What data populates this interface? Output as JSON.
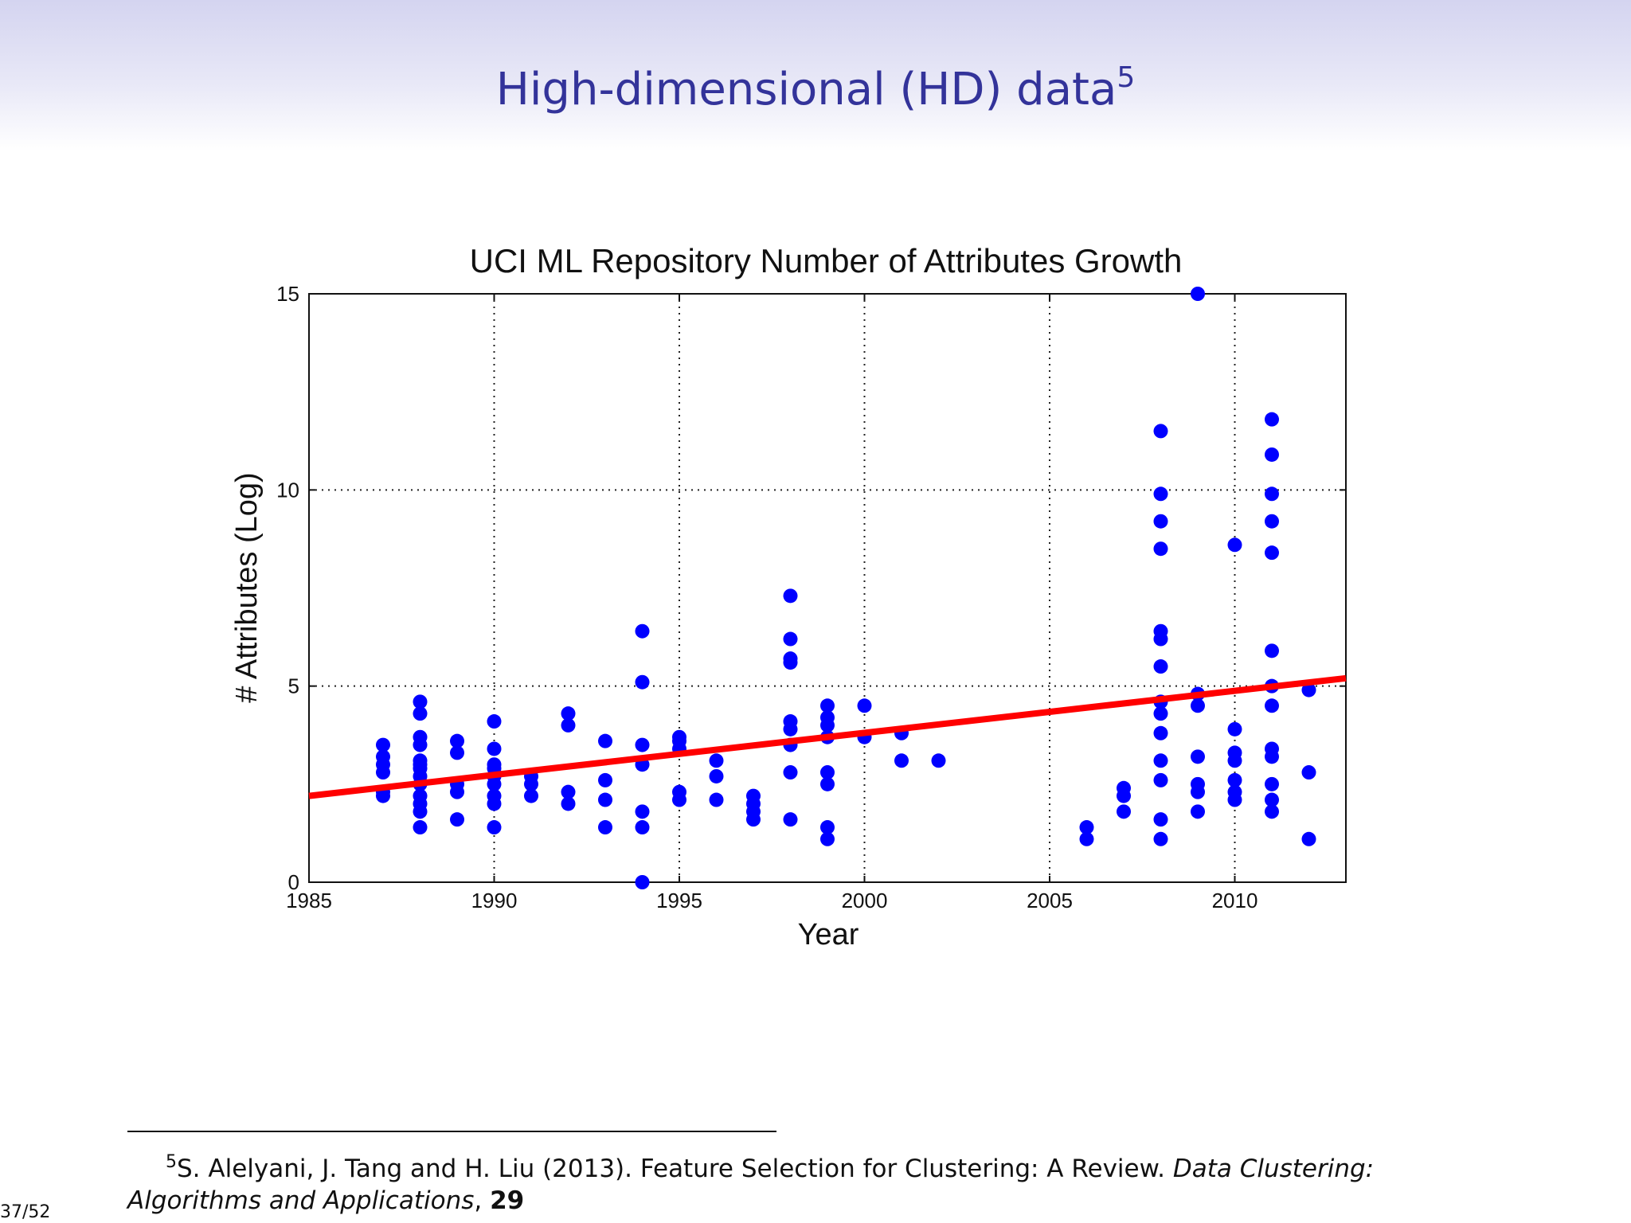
{
  "slide": {
    "title": "High-dimensional (HD) data",
    "title_footnote_mark": "5",
    "page_number": "37/52"
  },
  "footnote": {
    "mark": "5",
    "text": "S. Alelyani, J. Tang and H. Liu (2013). Feature Selection for Clustering: A Review.",
    "journal": "Data Clustering: Algorithms and Applications",
    "separator": ", ",
    "volume": "29"
  },
  "chart_data": {
    "type": "scatter",
    "title": "UCI ML Repository Number of Attributes Growth",
    "xlabel": "Year",
    "ylabel": "# Attributes (Log)",
    "xlim": [
      1985,
      2013
    ],
    "ylim": [
      0,
      15
    ],
    "xticks": [
      1985,
      1990,
      1995,
      2000,
      2005,
      2010
    ],
    "yticks": [
      0,
      5,
      10,
      15
    ],
    "grid": true,
    "colors": {
      "points": "#0000ff",
      "trend": "#ff0000",
      "grid": "#222222"
    },
    "points": [
      [
        1987,
        2.2
      ],
      [
        1987,
        2.3
      ],
      [
        1987,
        2.8
      ],
      [
        1987,
        3.0
      ],
      [
        1987,
        3.2
      ],
      [
        1987,
        3.5
      ],
      [
        1988,
        1.4
      ],
      [
        1988,
        1.8
      ],
      [
        1988,
        2.0
      ],
      [
        1988,
        2.2
      ],
      [
        1988,
        2.5
      ],
      [
        1988,
        2.7
      ],
      [
        1988,
        2.9
      ],
      [
        1988,
        3.0
      ],
      [
        1988,
        3.1
      ],
      [
        1988,
        3.5
      ],
      [
        1988,
        3.7
      ],
      [
        1988,
        4.3
      ],
      [
        1988,
        4.6
      ],
      [
        1989,
        1.6
      ],
      [
        1989,
        2.3
      ],
      [
        1989,
        2.5
      ],
      [
        1989,
        3.3
      ],
      [
        1989,
        3.6
      ],
      [
        1990,
        1.4
      ],
      [
        1990,
        2.0
      ],
      [
        1990,
        2.2
      ],
      [
        1990,
        2.5
      ],
      [
        1990,
        2.7
      ],
      [
        1990,
        2.9
      ],
      [
        1990,
        3.0
      ],
      [
        1990,
        3.4
      ],
      [
        1990,
        4.1
      ],
      [
        1991,
        2.2
      ],
      [
        1991,
        2.5
      ],
      [
        1991,
        2.7
      ],
      [
        1992,
        2.0
      ],
      [
        1992,
        2.3
      ],
      [
        1992,
        4.0
      ],
      [
        1992,
        4.3
      ],
      [
        1993,
        1.4
      ],
      [
        1993,
        2.1
      ],
      [
        1993,
        2.6
      ],
      [
        1993,
        3.6
      ],
      [
        1994,
        0.0
      ],
      [
        1994,
        1.4
      ],
      [
        1994,
        1.8
      ],
      [
        1994,
        3.0
      ],
      [
        1994,
        3.5
      ],
      [
        1994,
        5.1
      ],
      [
        1994,
        6.4
      ],
      [
        1995,
        2.1
      ],
      [
        1995,
        2.3
      ],
      [
        1995,
        3.4
      ],
      [
        1995,
        3.6
      ],
      [
        1995,
        3.7
      ],
      [
        1996,
        2.1
      ],
      [
        1996,
        2.7
      ],
      [
        1996,
        3.1
      ],
      [
        1997,
        1.6
      ],
      [
        1997,
        1.8
      ],
      [
        1997,
        2.0
      ],
      [
        1997,
        2.2
      ],
      [
        1998,
        1.6
      ],
      [
        1998,
        2.8
      ],
      [
        1998,
        3.5
      ],
      [
        1998,
        3.9
      ],
      [
        1998,
        4.1
      ],
      [
        1998,
        5.6
      ],
      [
        1998,
        5.7
      ],
      [
        1998,
        6.2
      ],
      [
        1998,
        7.3
      ],
      [
        1999,
        1.1
      ],
      [
        1999,
        1.4
      ],
      [
        1999,
        2.5
      ],
      [
        1999,
        2.8
      ],
      [
        1999,
        3.7
      ],
      [
        1999,
        4.0
      ],
      [
        1999,
        4.2
      ],
      [
        1999,
        4.5
      ],
      [
        2000,
        3.7
      ],
      [
        2000,
        4.5
      ],
      [
        2001,
        3.1
      ],
      [
        2001,
        3.8
      ],
      [
        2002,
        3.1
      ],
      [
        2006,
        1.1
      ],
      [
        2006,
        1.4
      ],
      [
        2007,
        1.8
      ],
      [
        2007,
        2.2
      ],
      [
        2007,
        2.4
      ],
      [
        2008,
        1.1
      ],
      [
        2008,
        1.6
      ],
      [
        2008,
        2.6
      ],
      [
        2008,
        3.1
      ],
      [
        2008,
        3.8
      ],
      [
        2008,
        4.3
      ],
      [
        2008,
        4.6
      ],
      [
        2008,
        5.5
      ],
      [
        2008,
        6.2
      ],
      [
        2008,
        6.4
      ],
      [
        2008,
        8.5
      ],
      [
        2008,
        9.2
      ],
      [
        2008,
        9.9
      ],
      [
        2008,
        11.5
      ],
      [
        2009,
        1.8
      ],
      [
        2009,
        2.3
      ],
      [
        2009,
        2.5
      ],
      [
        2009,
        3.2
      ],
      [
        2009,
        4.5
      ],
      [
        2009,
        4.8
      ],
      [
        2009,
        15.0
      ],
      [
        2010,
        2.1
      ],
      [
        2010,
        2.3
      ],
      [
        2010,
        2.6
      ],
      [
        2010,
        3.1
      ],
      [
        2010,
        3.3
      ],
      [
        2010,
        3.9
      ],
      [
        2010,
        8.6
      ],
      [
        2011,
        1.8
      ],
      [
        2011,
        2.1
      ],
      [
        2011,
        2.5
      ],
      [
        2011,
        3.2
      ],
      [
        2011,
        3.4
      ],
      [
        2011,
        4.5
      ],
      [
        2011,
        5.0
      ],
      [
        2011,
        5.9
      ],
      [
        2011,
        8.4
      ],
      [
        2011,
        9.2
      ],
      [
        2011,
        9.9
      ],
      [
        2011,
        10.9
      ],
      [
        2011,
        11.8
      ],
      [
        2012,
        1.1
      ],
      [
        2012,
        2.8
      ],
      [
        2012,
        4.9
      ]
    ],
    "trend_line": {
      "x": [
        1985,
        2013
      ],
      "y": [
        2.2,
        5.2
      ]
    }
  }
}
